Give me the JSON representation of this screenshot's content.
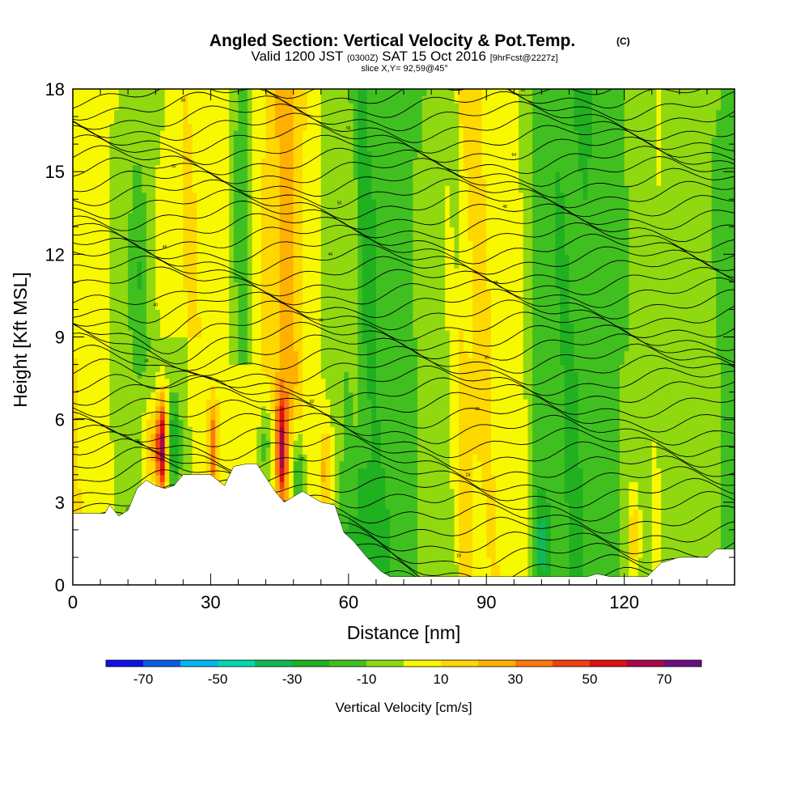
{
  "title": {
    "main": "Angled Section: Vertical Velocity & Pot.Temp.",
    "main_suffix": "(C)",
    "valid_prefix": "Valid 1200 JST",
    "valid_utc": "(0300Z)",
    "valid_date": "SAT 15 Oct 2016",
    "forecast": "[9hrFcst@2227z]",
    "slice": "slice X,Y= 92,59@45°"
  },
  "colors": {
    "terrain": "#ffffff",
    "contour": "#000000",
    "frame": "#000000",
    "background": "#ffffff"
  },
  "chart_data": {
    "type": "heatmap",
    "xlabel": "Distance [nm]",
    "ylabel": "Height [Kft MSL]",
    "xlim": [
      0,
      144
    ],
    "ylim": [
      0,
      18
    ],
    "xticks": [
      0,
      30,
      60,
      90,
      120
    ],
    "yticks": [
      0,
      3,
      6,
      9,
      12,
      15,
      18
    ],
    "colorbar": {
      "title": "Vertical Velocity [cm/s]",
      "bins": [
        -80,
        -70,
        -60,
        -50,
        -40,
        -30,
        -20,
        -10,
        0,
        10,
        20,
        30,
        40,
        50,
        60,
        70,
        80
      ],
      "labels": [
        -70,
        -50,
        -30,
        -10,
        10,
        30,
        50,
        70
      ],
      "colors": [
        "#1010e8",
        "#0a5ce8",
        "#00b8f0",
        "#00d8b0",
        "#10b858",
        "#20b020",
        "#40c020",
        "#90d810",
        "#f8f800",
        "#ffd800",
        "#ffb000",
        "#ff7810",
        "#f04010",
        "#e01010",
        "#a80848",
        "#6a1080"
      ]
    },
    "terrain": [
      [
        0,
        2.6
      ],
      [
        7,
        2.6
      ],
      [
        8,
        2.9
      ],
      [
        10,
        2.5
      ],
      [
        12,
        2.7
      ],
      [
        14,
        3.5
      ],
      [
        16,
        3.8
      ],
      [
        18,
        3.6
      ],
      [
        20,
        3.5
      ],
      [
        22,
        3.6
      ],
      [
        24,
        4
      ],
      [
        30,
        4
      ],
      [
        33,
        3.6
      ],
      [
        35,
        4.3
      ],
      [
        38,
        4.4
      ],
      [
        40,
        4.4
      ],
      [
        42,
        3.9
      ],
      [
        44,
        3.4
      ],
      [
        46,
        3
      ],
      [
        48,
        3.2
      ],
      [
        50,
        3.4
      ],
      [
        52,
        3.2
      ],
      [
        54,
        3
      ],
      [
        57,
        2.9
      ],
      [
        59,
        1.9
      ],
      [
        61,
        1.6
      ],
      [
        64,
        1
      ],
      [
        67,
        0.5
      ],
      [
        69,
        0.3
      ],
      [
        72,
        0.3
      ],
      [
        90,
        0.3
      ],
      [
        100,
        0.3
      ],
      [
        106,
        0.3
      ],
      [
        112,
        0.3
      ],
      [
        114,
        0.4
      ],
      [
        117,
        0.3
      ],
      [
        120,
        0.3
      ],
      [
        125,
        0.3
      ],
      [
        128,
        0.8
      ],
      [
        132,
        1
      ],
      [
        138,
        1
      ],
      [
        140,
        1.3
      ],
      [
        144,
        1.3
      ]
    ],
    "theta_label_values": [
      16,
      18,
      20,
      22,
      24,
      26,
      28,
      30,
      32,
      34,
      36,
      38,
      40,
      42,
      44,
      46,
      48,
      50,
      52,
      54,
      56,
      58,
      60,
      62
    ]
  }
}
